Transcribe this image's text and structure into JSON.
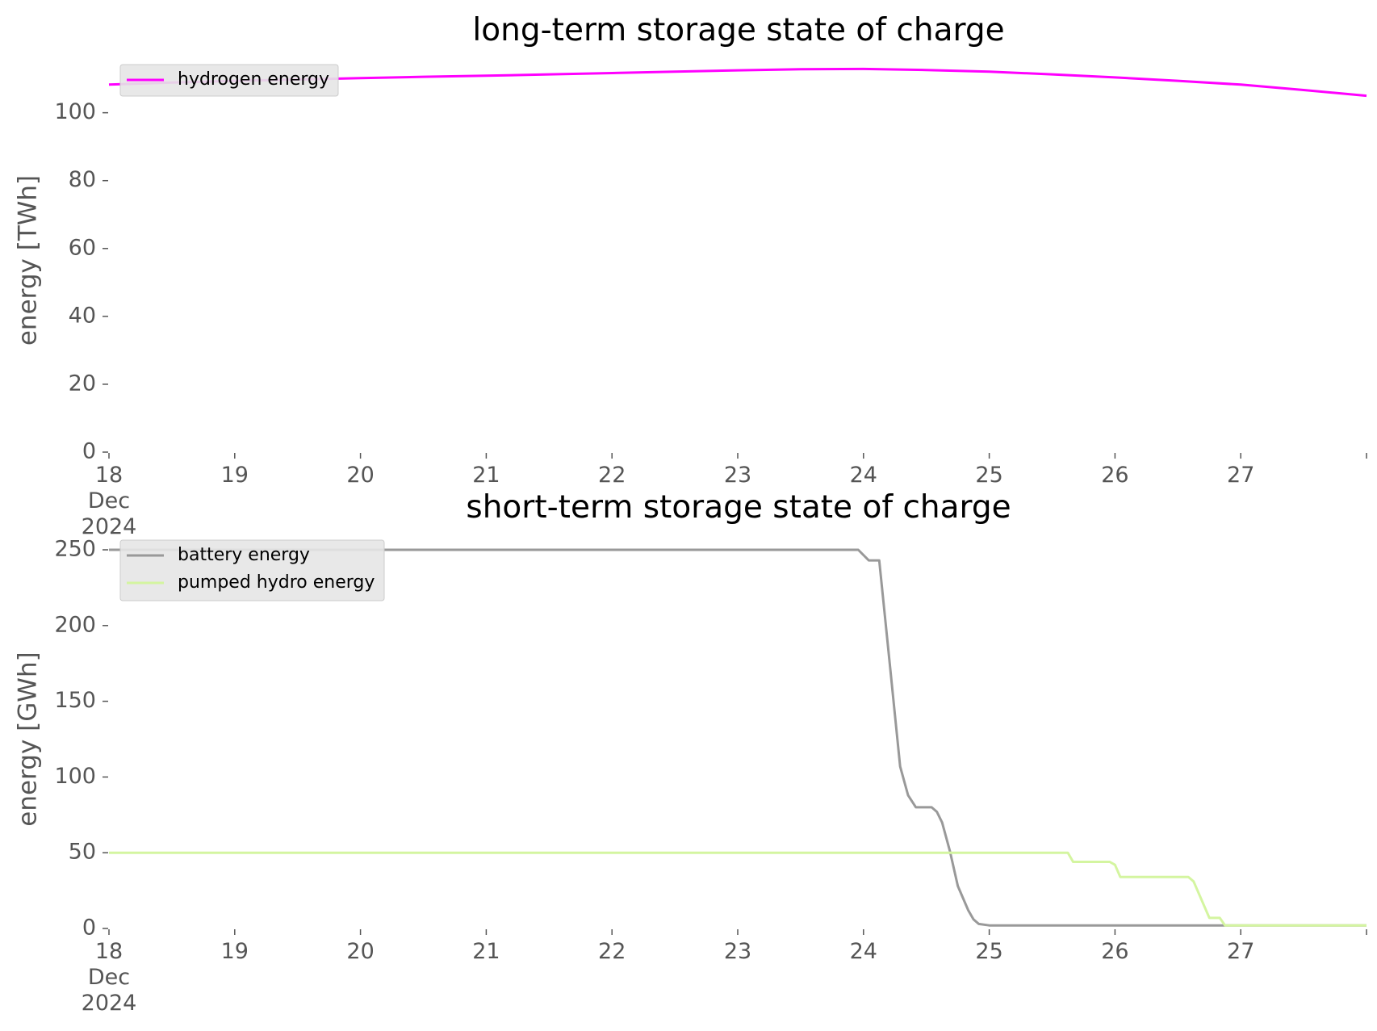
{
  "chart_data": [
    {
      "type": "line",
      "title": "long-term storage state of charge",
      "xlabel": "",
      "ylabel": "energy [TWh]",
      "x_tick_labels": [
        "18\nDec\n2024",
        "19",
        "20",
        "21",
        "22",
        "23",
        "24",
        "25",
        "26",
        "27"
      ],
      "x_ticks_days": [
        18,
        19,
        20,
        21,
        22,
        23,
        24,
        25,
        26,
        27
      ],
      "xlim": [
        "2024-12-18",
        "2024-12-28"
      ],
      "ylim": [
        0,
        113
      ],
      "y_ticks": [
        0,
        20,
        40,
        60,
        80,
        100
      ],
      "grid": false,
      "legend": "top-left",
      "series": [
        {
          "name": "hydrogen energy",
          "color": "#ff00ff",
          "x": [
            "2024-12-18 00:00",
            "2024-12-18 12:00",
            "2024-12-19 00:00",
            "2024-12-19 12:00",
            "2024-12-20 00:00",
            "2024-12-20 12:00",
            "2024-12-21 00:00",
            "2024-12-21 12:00",
            "2024-12-22 00:00",
            "2024-12-22 12:00",
            "2024-12-23 00:00",
            "2024-12-23 12:00",
            "2024-12-24 00:00",
            "2024-12-24 12:00",
            "2024-12-25 00:00",
            "2024-12-25 12:00",
            "2024-12-26 00:00",
            "2024-12-26 12:00",
            "2024-12-27 00:00",
            "2024-12-27 12:00",
            "2024-12-28 00:00"
          ],
          "y": [
            108.3,
            108.9,
            109.4,
            109.8,
            110.2,
            110.6,
            110.9,
            111.3,
            111.7,
            112.1,
            112.5,
            112.8,
            112.9,
            112.6,
            112.1,
            111.3,
            110.4,
            109.4,
            108.3,
            106.7,
            105.0
          ]
        }
      ]
    },
    {
      "type": "line",
      "title": "short-term storage state of charge",
      "xlabel": "",
      "ylabel": "energy [GWh]",
      "x_tick_labels": [
        "18\nDec\n2024",
        "19",
        "20",
        "21",
        "22",
        "23",
        "24",
        "25",
        "26",
        "27"
      ],
      "x_ticks_days": [
        18,
        19,
        20,
        21,
        22,
        23,
        24,
        25,
        26,
        27
      ],
      "xlim": [
        "2024-12-18",
        "2024-12-28"
      ],
      "ylim": [
        0,
        250
      ],
      "y_ticks": [
        0,
        50,
        100,
        150,
        200,
        250
      ],
      "grid": false,
      "legend": "top-left",
      "series": [
        {
          "name": "battery energy",
          "color": "#999999",
          "x": [
            "2024-12-18 00:00",
            "2024-12-23 23:00",
            "2024-12-24 01:00",
            "2024-12-24 03:00",
            "2024-12-24 05:00",
            "2024-12-24 07:00",
            "2024-12-24 08:30",
            "2024-12-24 10:00",
            "2024-12-24 13:00",
            "2024-12-24 14:00",
            "2024-12-24 15:00",
            "2024-12-24 16:30",
            "2024-12-24 18:00",
            "2024-12-24 20:00",
            "2024-12-24 21:00",
            "2024-12-24 22:00",
            "2024-12-25 00:00",
            "2024-12-28 00:00"
          ],
          "y": [
            250,
            250,
            243,
            243,
            175,
            107,
            88,
            80,
            80,
            77,
            70,
            51,
            28,
            12,
            6,
            3,
            2,
            2
          ]
        },
        {
          "name": "pumped hydro energy",
          "color": "#d4f5a0",
          "x": [
            "2024-12-18 00:00",
            "2024-12-25 15:00",
            "2024-12-25 16:00",
            "2024-12-25 23:00",
            "2024-12-26 00:00",
            "2024-12-26 01:00",
            "2024-12-26 14:00",
            "2024-12-26 15:00",
            "2024-12-26 18:00",
            "2024-12-26 20:00",
            "2024-12-26 21:00",
            "2024-12-27 00:00",
            "2024-12-28 00:00"
          ],
          "y": [
            50,
            50,
            44,
            44,
            42,
            34,
            34,
            31,
            7,
            7,
            2,
            2,
            2
          ]
        }
      ]
    }
  ]
}
